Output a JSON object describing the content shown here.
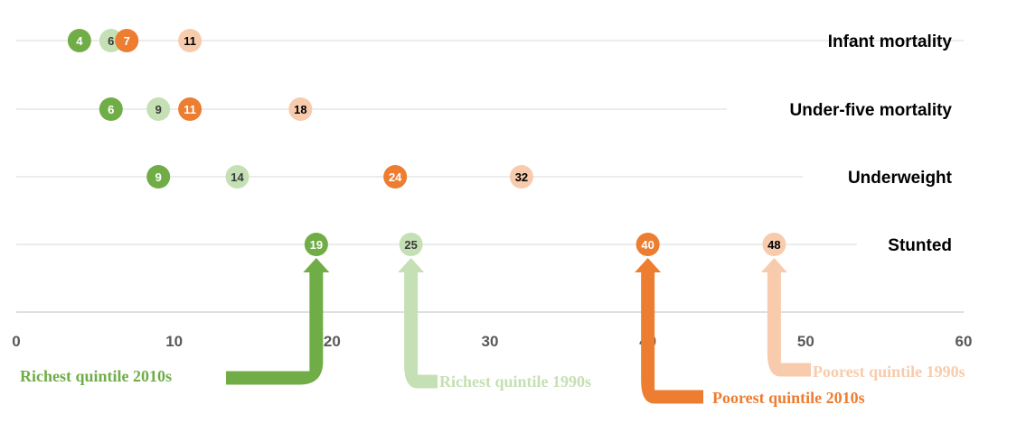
{
  "chart_data": {
    "type": "scatter",
    "title": "",
    "xlabel": "",
    "ylabel": "",
    "xlim": [
      0,
      60
    ],
    "xticks": [
      "0",
      "10",
      "20",
      "30",
      "40",
      "50",
      "60"
    ],
    "grid": true,
    "legend_position": "bottom",
    "categories": [
      "Infant mortality",
      "Under-five mortality",
      "Underweight",
      "Stunted"
    ],
    "series": [
      {
        "name": "Richest quintile 2010s",
        "color": "#70AD47",
        "label_color": "#ffffff",
        "values": [
          4,
          6,
          9,
          19
        ]
      },
      {
        "name": "Richest quintile 1990s",
        "color": "#C5E0B4",
        "label_color": "#3a3a3a",
        "values": [
          6,
          9,
          14,
          25
        ]
      },
      {
        "name": "Poorest quintile 2010s",
        "color": "#ED7D31",
        "label_color": "#ffffff",
        "values": [
          7,
          11,
          24,
          40
        ]
      },
      {
        "name": "Poorest quintile 1990s",
        "color": "#F8CBAD",
        "label_color": "#000000",
        "values": [
          11,
          18,
          32,
          48
        ]
      }
    ]
  }
}
